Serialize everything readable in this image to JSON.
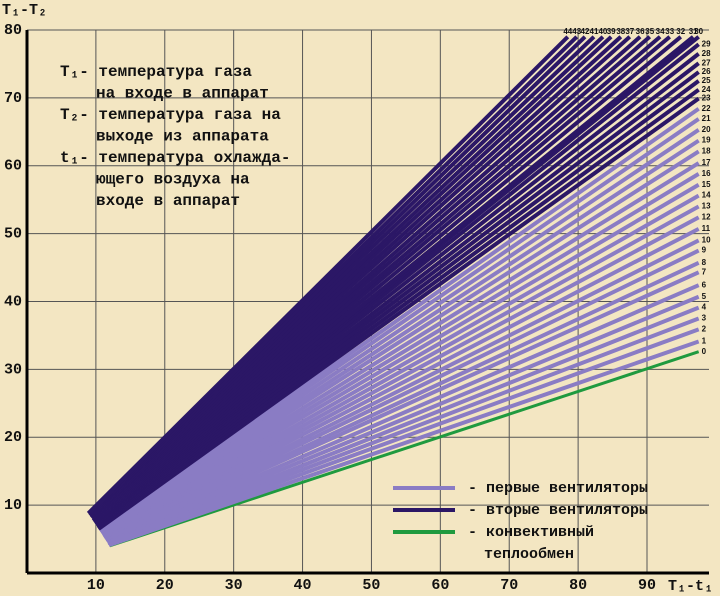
{
  "chart_data": {
    "type": "line",
    "ylabel": "T₁-T₂",
    "xlabel": "T₁-t₁",
    "annotation": [
      "T₁- температура газа",
      "на входе в аппарат",
      "T₂- температура газа на",
      "выходе из аппарата",
      "t₁- температура охлажда-",
      "ющего воздуха на",
      "входе в аппарат"
    ],
    "xlim": [
      0,
      99
    ],
    "ylim": [
      0,
      80
    ],
    "xticks": [
      10,
      20,
      30,
      40,
      50,
      60,
      70,
      80,
      90
    ],
    "yticks": [
      10,
      20,
      30,
      40,
      50,
      60,
      70,
      80
    ],
    "grid": true,
    "legend": [
      {
        "label": [
          "- первые вентиляторы"
        ],
        "color": "#8a7cc4"
      },
      {
        "label": [
          "- вторые вентиляторы"
        ],
        "color": "#2b1766"
      },
      {
        "label": [
          "- конвективный",
          "теплообмен"
        ],
        "color": "#1f9a3f"
      }
    ],
    "series": [
      {
        "name": "0",
        "color": "#1f9a3f",
        "x": [
          12.0,
          97.5
        ],
        "values": [
          4.0,
          32.6
        ]
      },
      {
        "name": "1",
        "color": "#8a7cc4",
        "x": [
          11.9,
          97.5
        ],
        "values": [
          4.1,
          34.1
        ]
      },
      {
        "name": "2",
        "color": "#8a7cc4",
        "x": [
          11.9,
          97.5
        ],
        "values": [
          4.2,
          35.9
        ]
      },
      {
        "name": "3",
        "color": "#8a7cc4",
        "x": [
          11.8,
          97.5
        ],
        "values": [
          4.3,
          37.5
        ]
      },
      {
        "name": "4",
        "color": "#8a7cc4",
        "x": [
          11.7,
          97.5
        ],
        "values": [
          4.4,
          39.1
        ]
      },
      {
        "name": "5",
        "color": "#8a7cc4",
        "x": [
          11.7,
          97.5
        ],
        "values": [
          4.6,
          40.7
        ]
      },
      {
        "name": "6",
        "color": "#8a7cc4",
        "x": [
          11.6,
          97.5
        ],
        "values": [
          4.7,
          42.4
        ]
      },
      {
        "name": "7",
        "color": "#8a7cc4",
        "x": [
          11.5,
          97.5
        ],
        "values": [
          4.8,
          44.3
        ]
      },
      {
        "name": "8",
        "color": "#8a7cc4",
        "x": [
          11.4,
          97.5
        ],
        "values": [
          4.9,
          45.7
        ]
      },
      {
        "name": "9",
        "color": "#8a7cc4",
        "x": [
          11.4,
          97.5
        ],
        "values": [
          5.0,
          47.5
        ]
      },
      {
        "name": "10",
        "color": "#8a7cc4",
        "x": [
          11.3,
          97.5
        ],
        "values": [
          5.1,
          49.0
        ]
      },
      {
        "name": "11",
        "color": "#8a7cc4",
        "x": [
          11.2,
          97.5
        ],
        "values": [
          5.2,
          50.7
        ]
      },
      {
        "name": "12",
        "color": "#8a7cc4",
        "x": [
          11.2,
          97.5
        ],
        "values": [
          5.3,
          52.4
        ]
      },
      {
        "name": "13",
        "color": "#8a7cc4",
        "x": [
          11.1,
          97.5
        ],
        "values": [
          5.4,
          54.0
        ]
      },
      {
        "name": "14",
        "color": "#8a7cc4",
        "x": [
          11.0,
          97.5
        ],
        "values": [
          5.5,
          55.6
        ]
      },
      {
        "name": "15",
        "color": "#8a7cc4",
        "x": [
          11.0,
          97.5
        ],
        "values": [
          5.7,
          57.2
        ]
      },
      {
        "name": "16",
        "color": "#8a7cc4",
        "x": [
          10.9,
          97.5
        ],
        "values": [
          5.8,
          58.8
        ]
      },
      {
        "name": "17",
        "color": "#8a7cc4",
        "x": [
          10.8,
          97.5
        ],
        "values": [
          5.9,
          60.4
        ]
      },
      {
        "name": "18",
        "color": "#8a7cc4",
        "x": [
          10.7,
          97.5
        ],
        "values": [
          6.0,
          62.1
        ]
      },
      {
        "name": "19",
        "color": "#8a7cc4",
        "x": [
          10.7,
          97.5
        ],
        "values": [
          6.1,
          63.7
        ]
      },
      {
        "name": "20",
        "color": "#8a7cc4",
        "x": [
          10.6,
          97.5
        ],
        "values": [
          6.2,
          65.3
        ]
      },
      {
        "name": "21",
        "color": "#8a7cc4",
        "x": [
          10.5,
          97.5
        ],
        "values": [
          6.3,
          66.9
        ]
      },
      {
        "name": "22",
        "color": "#8a7cc4",
        "x": [
          10.5,
          97.5
        ],
        "values": [
          6.4,
          68.4
        ]
      },
      {
        "name": "23",
        "color": "#2b1766",
        "x": [
          10.4,
          97.5
        ],
        "values": [
          6.5,
          69.9
        ]
      },
      {
        "name": "24",
        "color": "#2b1766",
        "x": [
          10.3,
          97.5
        ],
        "values": [
          6.6,
          71.2
        ]
      },
      {
        "name": "25",
        "color": "#2b1766",
        "x": [
          10.3,
          97.5
        ],
        "values": [
          6.8,
          72.5
        ]
      },
      {
        "name": "26",
        "color": "#2b1766",
        "x": [
          10.2,
          97.5
        ],
        "values": [
          6.9,
          73.8
        ]
      },
      {
        "name": "27",
        "color": "#2b1766",
        "x": [
          10.1,
          97.5
        ],
        "values": [
          7.0,
          75.1
        ]
      },
      {
        "name": "28",
        "color": "#2b1766",
        "x": [
          10.0,
          97.5
        ],
        "values": [
          7.1,
          76.5
        ]
      },
      {
        "name": "29",
        "color": "#2b1766",
        "x": [
          10.0,
          97.5
        ],
        "values": [
          7.2,
          77.9
        ]
      },
      {
        "name": "30",
        "color": "#2b1766",
        "x": [
          9.9,
          97.5
        ],
        "values": [
          7.3,
          79
        ]
      },
      {
        "name": "31",
        "color": "#2b1766",
        "x": [
          9.8,
          96.7
        ],
        "values": [
          7.4,
          79
        ]
      },
      {
        "name": "32",
        "color": "#2b1766",
        "x": [
          9.8,
          94.9
        ],
        "values": [
          7.5,
          79
        ]
      },
      {
        "name": "33",
        "color": "#2b1766",
        "x": [
          9.7,
          93.3
        ],
        "values": [
          7.6,
          79
        ]
      },
      {
        "name": "34",
        "color": "#2b1766",
        "x": [
          9.6,
          91.9
        ],
        "values": [
          7.7,
          79
        ]
      },
      {
        "name": "35",
        "color": "#2b1766",
        "x": [
          9.6,
          90.4
        ],
        "values": [
          7.9,
          79
        ]
      },
      {
        "name": "36",
        "color": "#2b1766",
        "x": [
          9.5,
          89.0
        ],
        "values": [
          8.0,
          79
        ]
      },
      {
        "name": "37",
        "color": "#2b1766",
        "x": [
          9.4,
          87.5
        ],
        "values": [
          8.1,
          79
        ]
      },
      {
        "name": "38",
        "color": "#2b1766",
        "x": [
          9.3,
          86.2
        ],
        "values": [
          8.2,
          79
        ]
      },
      {
        "name": "39",
        "color": "#2b1766",
        "x": [
          9.3,
          84.8
        ],
        "values": [
          8.3,
          79
        ]
      },
      {
        "name": "40",
        "color": "#2b1766",
        "x": [
          9.2,
          83.6
        ],
        "values": [
          8.4,
          79
        ]
      },
      {
        "name": "41",
        "color": "#2b1766",
        "x": [
          9.1,
          82.3
        ],
        "values": [
          8.5,
          79
        ]
      },
      {
        "name": "42",
        "color": "#2b1766",
        "x": [
          9.1,
          81.0
        ],
        "values": [
          8.6,
          79
        ]
      },
      {
        "name": "43",
        "color": "#2b1766",
        "x": [
          9.0,
          79.8
        ],
        "values": [
          8.7,
          79
        ]
      },
      {
        "name": "44",
        "color": "#2b1766",
        "x": [
          8.9,
          78.5
        ],
        "values": [
          8.8,
          79
        ]
      }
    ]
  }
}
